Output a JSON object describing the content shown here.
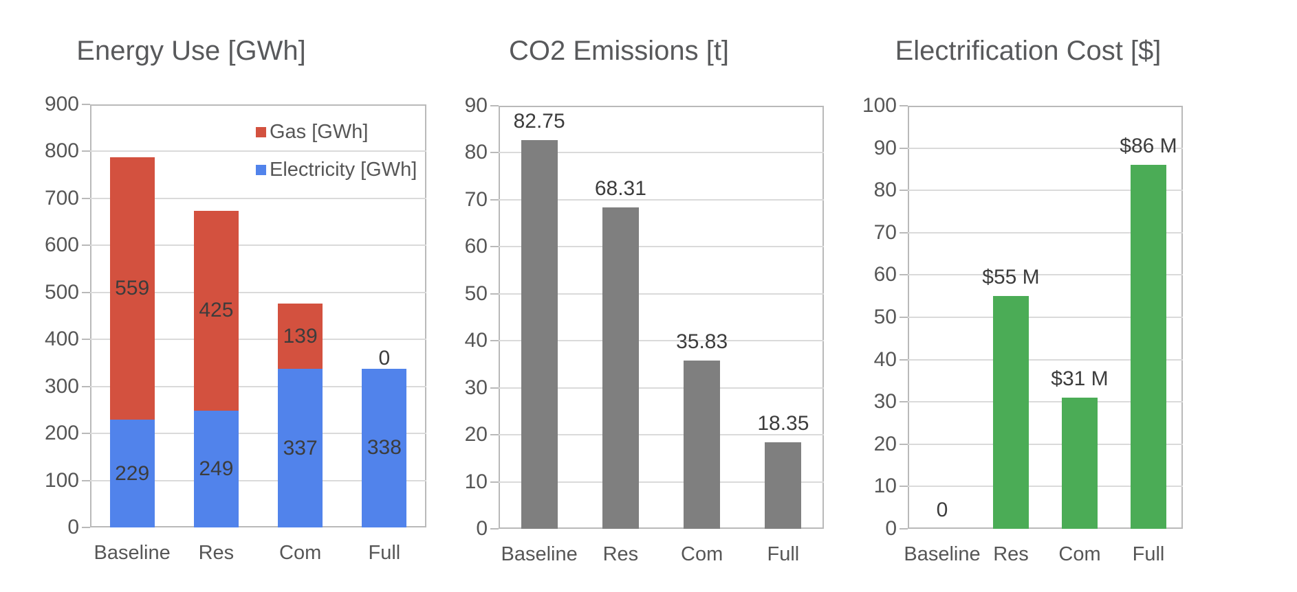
{
  "page": {
    "background": "#ffffff",
    "text_color_title": "#58595b",
    "text_color_axis": "#565656",
    "text_color_value": "#3c3c3c",
    "gridline_color": "#dadada",
    "plot_border_color": "#b9b9b9"
  },
  "chart_data": [
    {
      "type": "bar",
      "stacked": true,
      "title": "Energy Use [GWh]",
      "categories": [
        "Baseline",
        "Res",
        "Com",
        "Full"
      ],
      "series": [
        {
          "name": "Electricity [GWh]",
          "color": "#5183eb",
          "values": [
            229,
            249,
            337,
            338
          ],
          "labels": [
            "229",
            "249",
            "337",
            "338"
          ]
        },
        {
          "name": "Gas [GWh]",
          "color": "#d3513f",
          "values": [
            559,
            425,
            139,
            0
          ],
          "labels": [
            "559",
            "425",
            "139",
            "0"
          ]
        }
      ],
      "totals": [
        788,
        674,
        476,
        338
      ],
      "ylim": [
        0,
        900
      ],
      "yticks": [
        0,
        100,
        200,
        300,
        400,
        500,
        600,
        700,
        800,
        900
      ],
      "grid": true,
      "legend": {
        "position": "top-right-inside",
        "entries": [
          {
            "label": "Gas [GWh]",
            "color": "#d3513f"
          },
          {
            "label": "Electricity [GWh]",
            "color": "#5183eb"
          }
        ]
      }
    },
    {
      "type": "bar",
      "stacked": false,
      "title": "CO2 Emissions [t]",
      "categories": [
        "Baseline",
        "Res",
        "Com",
        "Full"
      ],
      "series": [
        {
          "name": "CO2 Emissions [t]",
          "color": "#7f7f7f",
          "values": [
            82.75,
            68.31,
            35.83,
            18.35
          ],
          "value_labels": [
            "82.75",
            "68.31",
            "35.83",
            "18.35"
          ]
        }
      ],
      "ylim": [
        0,
        90
      ],
      "yticks": [
        0,
        10,
        20,
        30,
        40,
        50,
        60,
        70,
        80,
        90
      ],
      "grid": true,
      "legend": null
    },
    {
      "type": "bar",
      "stacked": false,
      "title": "Electrification Cost [$]",
      "categories": [
        "Baseline",
        "Res",
        "Com",
        "Full"
      ],
      "series": [
        {
          "name": "Electrification Cost [$]",
          "color": "#4bac56",
          "values": [
            0,
            55,
            31,
            86
          ],
          "value_labels": [
            "0",
            "$55 M",
            "$31 M",
            "$86 M"
          ]
        }
      ],
      "ylim": [
        0,
        100
      ],
      "yticks": [
        0,
        10,
        20,
        30,
        40,
        50,
        60,
        70,
        80,
        90,
        100
      ],
      "grid": true,
      "legend": null
    }
  ]
}
